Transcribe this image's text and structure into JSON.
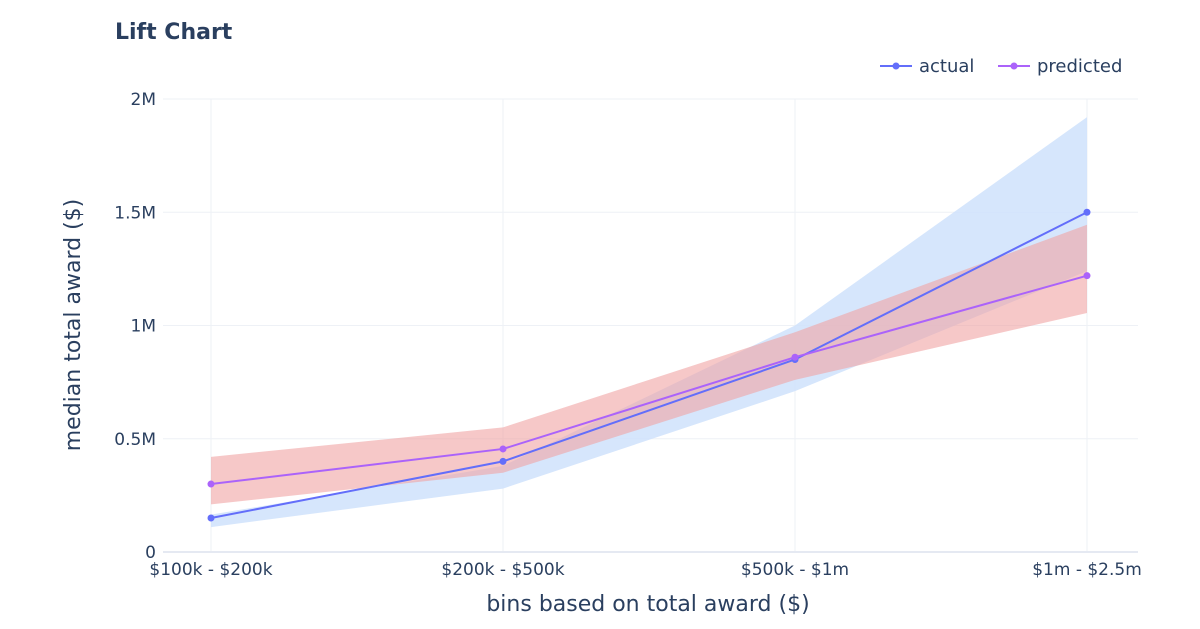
{
  "chart_data": {
    "type": "line",
    "title": "Lift Chart",
    "xlabel": "bins based on total award ($)",
    "ylabel": "median total award ($)",
    "categories": [
      "$100k - $200k",
      "$200k - $500k",
      "$500k - $1m",
      "$1m - $2.5m"
    ],
    "ylim": [
      0,
      2000000
    ],
    "yticks": [
      0,
      500000,
      1000000,
      1500000,
      2000000
    ],
    "ytick_labels": [
      "0",
      "0.5M",
      "1M",
      "1.5M",
      "2M"
    ],
    "grid": true,
    "legend_position": "top-right",
    "series": [
      {
        "name": "actual",
        "color": "#636efa",
        "band_color": "#cfe2fb",
        "values": [
          150000,
          400000,
          850000,
          1500000
        ],
        "lower": [
          110000,
          280000,
          710000,
          1240000
        ],
        "upper": [
          165000,
          380000,
          1000000,
          1920000
        ]
      },
      {
        "name": "predicted",
        "color": "#ab63fa",
        "band_color": "#f0a3a3",
        "values": [
          300000,
          455000,
          860000,
          1220000
        ],
        "lower": [
          210000,
          350000,
          760000,
          1055000
        ],
        "upper": [
          420000,
          550000,
          970000,
          1445000
        ]
      }
    ]
  }
}
